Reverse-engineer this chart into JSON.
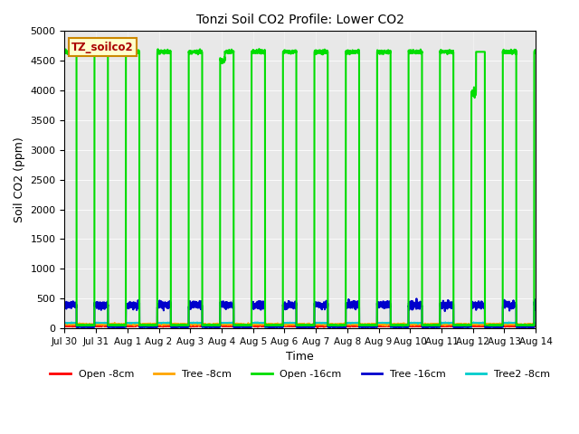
{
  "title": "Tonzi Soil CO2 Profile: Lower CO2",
  "xlabel": "Time",
  "ylabel": "Soil CO2 (ppm)",
  "ylim": [
    0,
    5000
  ],
  "bg_color": "#e8e8e8",
  "legend_label": "TZ_soilco2",
  "series": {
    "open_8cm": {
      "color": "#ff0000",
      "label": "Open -8cm",
      "lw": 1.0
    },
    "tree_8cm": {
      "color": "#ffa500",
      "label": "Tree -8cm",
      "lw": 1.0
    },
    "open_16cm": {
      "color": "#00dd00",
      "label": "Open -16cm",
      "lw": 1.5
    },
    "tree_16cm": {
      "color": "#0000cc",
      "label": "Tree -16cm",
      "lw": 1.5
    },
    "tree2_8cm": {
      "color": "#00cccc",
      "label": "Tree2 -8cm",
      "lw": 1.0
    }
  },
  "xtick_labels": [
    "Jul 30",
    "Jul 31",
    "Aug 1",
    "Aug 2",
    "Aug 3",
    "Aug 4",
    "Aug 5",
    "Aug 6",
    "Aug 7",
    "Aug 8",
    "Aug 9",
    "Aug 10",
    "Aug 11",
    "Aug 12",
    "Aug 13",
    "Aug 14"
  ],
  "num_days": 15,
  "open16_high": 4650,
  "open16_low": 50,
  "tree16_high": 390,
  "tree16_low": 30,
  "tree2_high": 90,
  "tree2_low": 5,
  "open8_base": 40,
  "tree8_base": 65
}
